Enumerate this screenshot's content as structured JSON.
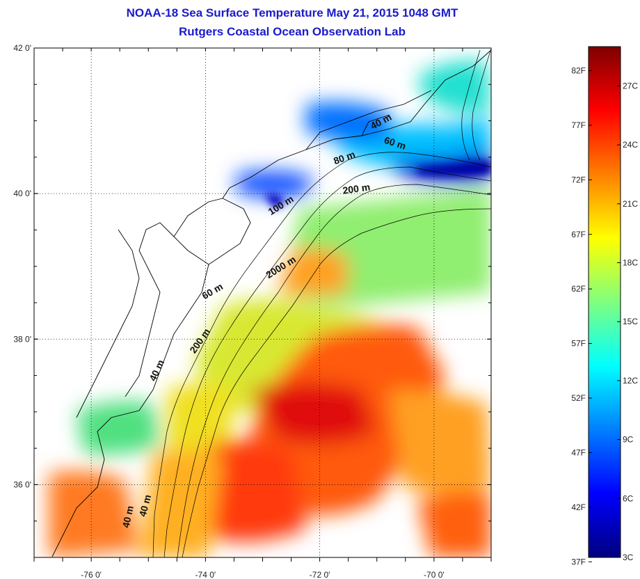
{
  "title": {
    "line1": "NOAA-18 Sea Surface Temperature May 21, 2015 1048 GMT",
    "line2": "Rutgers Coastal Ocean Observation Lab"
  },
  "map": {
    "lon_range": [
      -77.0,
      -69.0
    ],
    "lat_range": [
      35.0,
      42.0
    ],
    "lat_ticks": [
      {
        "value": 42,
        "label": "42 0'"
      },
      {
        "value": 40,
        "label": "40 0'"
      },
      {
        "value": 38,
        "label": "38 0'"
      },
      {
        "value": 36,
        "label": "36 0'"
      }
    ],
    "lon_ticks": [
      {
        "value": -76,
        "label": "-76 0'"
      },
      {
        "value": -74,
        "label": "-74 0'"
      },
      {
        "value": -72,
        "label": "-72 0'"
      },
      {
        "value": -70,
        "label": "-70 0'"
      }
    ],
    "grid": "dotted",
    "contour_labels": [
      {
        "text": "40 m",
        "lon": -70.9,
        "lat": 40.95,
        "rotate": -28
      },
      {
        "text": "60 m",
        "lon": -70.7,
        "lat": 40.65,
        "rotate": 18
      },
      {
        "text": "80 m",
        "lon": -71.55,
        "lat": 40.45,
        "rotate": -20
      },
      {
        "text": "200 m",
        "lon": -71.35,
        "lat": 40.02,
        "rotate": -8
      },
      {
        "text": "100 m",
        "lon": -72.65,
        "lat": 39.8,
        "rotate": -32
      },
      {
        "text": "2000 m",
        "lon": -72.65,
        "lat": 38.95,
        "rotate": -32
      },
      {
        "text": "60 m",
        "lon": -73.85,
        "lat": 38.62,
        "rotate": -30
      },
      {
        "text": "200 m",
        "lon": -74.05,
        "lat": 37.95,
        "rotate": -55
      },
      {
        "text": "40 m",
        "lon": -74.8,
        "lat": 37.55,
        "rotate": -65
      },
      {
        "text": "40 m",
        "lon": -75.0,
        "lat": 35.7,
        "rotate": -75
      },
      {
        "text": "40 m",
        "lon": -75.3,
        "lat": 35.55,
        "rotate": -78
      }
    ]
  },
  "colorbar": {
    "min_c": 3,
    "max_c": 29,
    "fahrenheit": [
      {
        "value": 82,
        "label": "82F"
      },
      {
        "value": 77,
        "label": "77F"
      },
      {
        "value": 72,
        "label": "72F"
      },
      {
        "value": 67,
        "label": "67F"
      },
      {
        "value": 62,
        "label": "62F"
      },
      {
        "value": 57,
        "label": "57F"
      },
      {
        "value": 52,
        "label": "52F"
      },
      {
        "value": 47,
        "label": "47F"
      },
      {
        "value": 42,
        "label": "42F"
      },
      {
        "value": 37,
        "label": "37F"
      }
    ],
    "celsius": [
      {
        "value": 27,
        "label": "27C"
      },
      {
        "value": 24,
        "label": "24C"
      },
      {
        "value": 21,
        "label": "21C"
      },
      {
        "value": 18,
        "label": "18C"
      },
      {
        "value": 15,
        "label": "15C"
      },
      {
        "value": 12,
        "label": "12C"
      },
      {
        "value": 9,
        "label": "9C"
      },
      {
        "value": 6,
        "label": "6C"
      },
      {
        "value": 3,
        "label": "3C"
      }
    ],
    "colors": [
      "#00007f",
      "#0000ff",
      "#007fff",
      "#00ffff",
      "#7fff7f",
      "#ffff00",
      "#ff7f00",
      "#ff0000",
      "#7f0000"
    ]
  }
}
